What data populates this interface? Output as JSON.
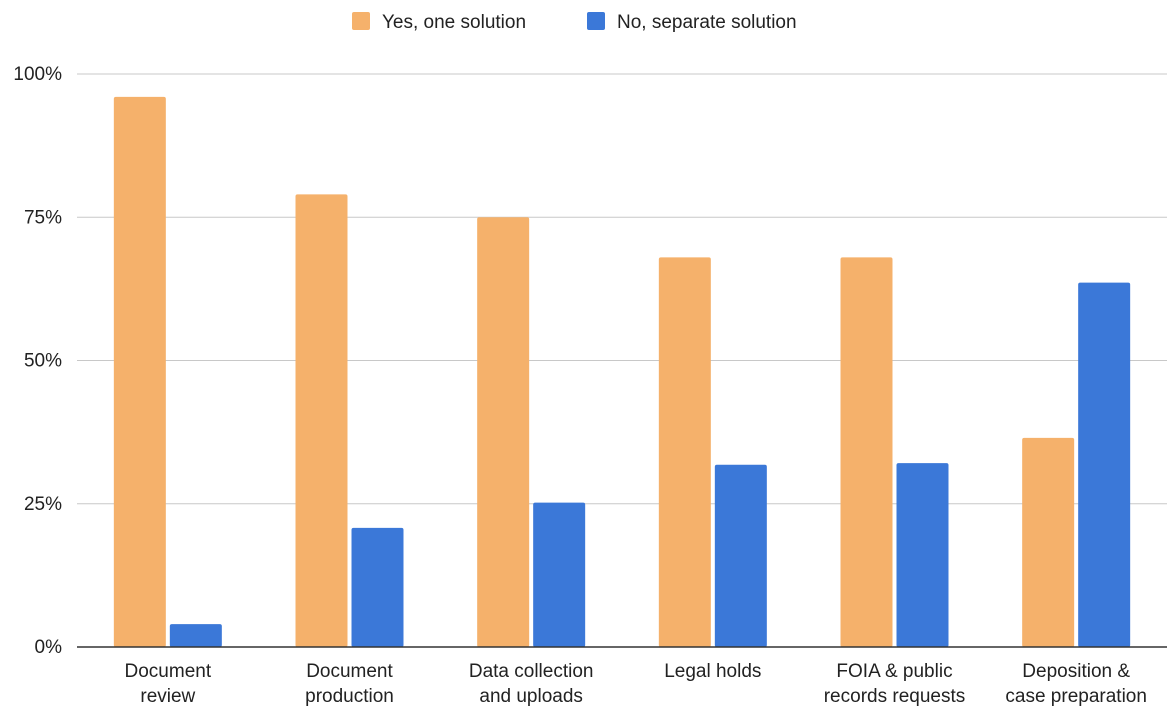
{
  "chart_data": {
    "type": "bar",
    "title": "",
    "xlabel": "",
    "ylabel": "",
    "categories": [
      [
        "Document",
        "review"
      ],
      [
        "Document",
        "production"
      ],
      [
        "Data collection",
        "and uploads"
      ],
      [
        "Legal holds"
      ],
      [
        "FOIA & public",
        "records requests"
      ],
      [
        "Deposition &",
        "case preparation"
      ]
    ],
    "series": [
      {
        "name": "Yes, one solution",
        "color": "#f5b16b",
        "values": [
          96,
          79,
          75,
          68,
          68,
          36.5
        ]
      },
      {
        "name": "No, separate solution",
        "color": "#3b78d8",
        "values": [
          4,
          20.8,
          25.2,
          31.8,
          32.1,
          63.6
        ]
      }
    ],
    "ylim": [
      0,
      100
    ],
    "yticks": [
      0,
      25,
      50,
      75,
      100
    ],
    "ytick_labels": [
      "0%",
      "25%",
      "50%",
      "75%",
      "100%"
    ],
    "grid": true,
    "legend_position": "top-center"
  }
}
